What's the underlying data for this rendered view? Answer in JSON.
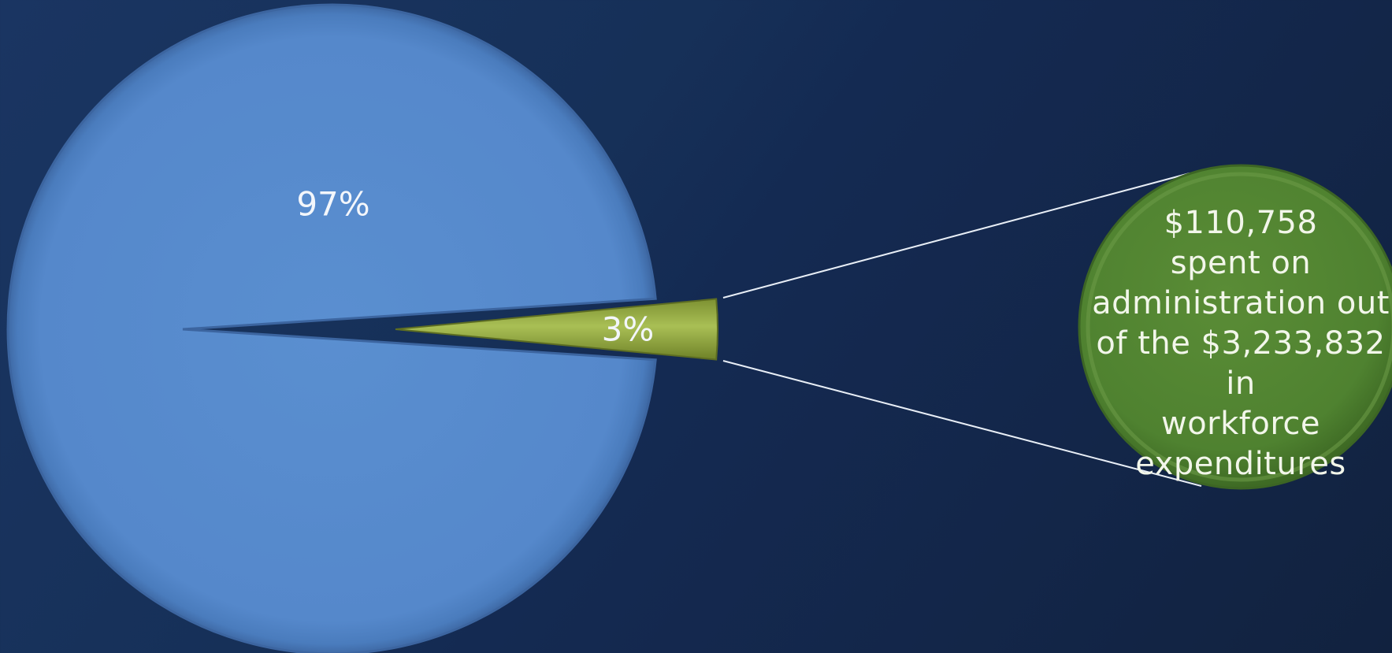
{
  "chart_data": {
    "type": "pie",
    "title": "",
    "slices": [
      {
        "label": "97%",
        "value": 97,
        "color": "#5a8fd0"
      },
      {
        "label": "3%",
        "value": 3,
        "color": "#8ea33c"
      }
    ],
    "exploded_slice": "3%",
    "callout": {
      "text": "$110,758\nspent on\nadministration out\nof the $3,233,832 in\nworkforce\nexpenditures",
      "color": "#4f8230"
    }
  }
}
